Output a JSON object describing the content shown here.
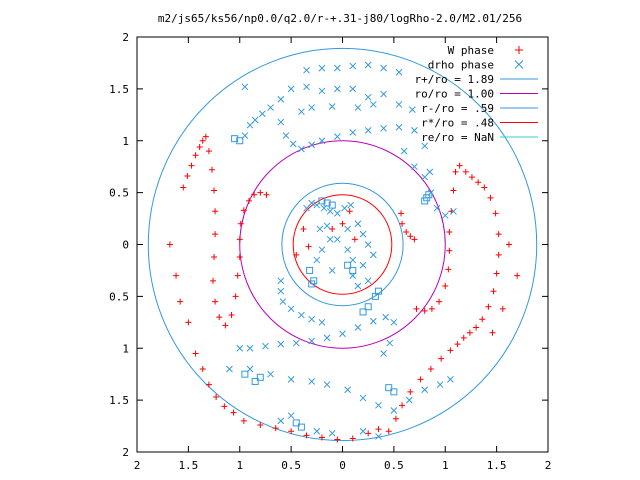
{
  "chart_data": {
    "type": "scatter",
    "title": "m2/js65/ks56/np0.0/q2.0/r-+.31-j80/logRho-2.0/M2.01/256",
    "xlabel": "",
    "ylabel": "",
    "xlim": [
      -2,
      2
    ],
    "ylim": [
      -2,
      2
    ],
    "x_tick_labels": [
      "2",
      "1.5",
      "1",
      "0.5",
      "0",
      "0.5",
      "1",
      "1.5",
      "2"
    ],
    "y_tick_labels": [
      "2",
      "1.5",
      "1",
      "0.5",
      "0",
      "0.5",
      "1",
      "1.5",
      "2"
    ],
    "grid": false,
    "legend_position": "top-right",
    "series": [
      {
        "name": "W phase",
        "marker": "plus",
        "color": "#ff0000",
        "labels": [
          "W phase"
        ]
      },
      {
        "name": "drho phase",
        "marker": "cross",
        "color": "#3399dd",
        "labels": [
          "drho phase"
        ]
      }
    ],
    "circles": [
      {
        "name": "r+/ro = 1.89",
        "radius": 1.89,
        "color": "#3399dd"
      },
      {
        "name": "ro/ro = 1.00",
        "radius": 1.0,
        "color": "#bb00bb"
      },
      {
        "name": "r-/ro = .59",
        "radius": 0.59,
        "color": "#3399dd"
      },
      {
        "name": "r*/ro = .48",
        "radius": 0.48,
        "color": "#ff0000"
      },
      {
        "name": "re/ro = NaN",
        "radius": null,
        "color": "#33cccc"
      }
    ],
    "w_phase_points": [
      [
        -1.55,
        0.55
      ],
      [
        -1.51,
        0.66
      ],
      [
        -1.47,
        0.76
      ],
      [
        -1.43,
        0.86
      ],
      [
        -1.39,
        0.94
      ],
      [
        -1.36,
        1.0
      ],
      [
        -1.33,
        1.04
      ],
      [
        -1.3,
        0.9
      ],
      [
        -1.27,
        0.72
      ],
      [
        -1.25,
        0.52
      ],
      [
        -1.24,
        0.32
      ],
      [
        -1.24,
        0.1
      ],
      [
        -1.25,
        -0.12
      ],
      [
        -1.26,
        -0.35
      ],
      [
        -1.24,
        -0.55
      ],
      [
        -1.2,
        -0.7
      ],
      [
        -1.14,
        -0.78
      ],
      [
        -1.08,
        -0.68
      ],
      [
        -1.04,
        -0.5
      ],
      [
        -1.02,
        -0.3
      ],
      [
        -1.0,
        -0.12
      ],
      [
        -1.0,
        0.05
      ],
      [
        -0.99,
        0.2
      ],
      [
        -0.96,
        0.33
      ],
      [
        -0.91,
        0.42
      ],
      [
        -0.86,
        0.48
      ],
      [
        -0.8,
        0.5
      ],
      [
        -0.74,
        0.48
      ],
      [
        -1.68,
        0.0
      ],
      [
        -1.62,
        -0.3
      ],
      [
        -1.58,
        -0.55
      ],
      [
        -1.5,
        -0.75
      ],
      [
        -1.43,
        -1.05
      ],
      [
        -1.36,
        -1.2
      ],
      [
        -1.3,
        -1.35
      ],
      [
        -1.23,
        -1.47
      ],
      [
        -1.15,
        -1.56
      ],
      [
        -1.06,
        -1.62
      ],
      [
        -0.96,
        -1.7
      ],
      [
        -0.8,
        -1.74
      ],
      [
        -0.65,
        -1.77
      ],
      [
        -0.5,
        -1.8
      ],
      [
        -0.35,
        -1.84
      ],
      [
        -0.2,
        -1.86
      ],
      [
        -0.05,
        -1.88
      ],
      [
        0.1,
        -1.87
      ],
      [
        0.25,
        -1.82
      ],
      [
        0.35,
        -1.78
      ],
      [
        0.45,
        -1.8
      ],
      [
        0.52,
        -1.68
      ],
      [
        0.58,
        -1.55
      ],
      [
        0.66,
        -1.42
      ],
      [
        0.76,
        -1.3
      ],
      [
        0.86,
        -1.2
      ],
      [
        0.96,
        -1.1
      ],
      [
        1.05,
        -1.02
      ],
      [
        1.12,
        -0.96
      ],
      [
        1.18,
        -0.9
      ],
      [
        1.24,
        -0.85
      ],
      [
        1.3,
        -0.8
      ],
      [
        1.36,
        -0.72
      ],
      [
        1.42,
        -0.6
      ],
      [
        1.47,
        -0.45
      ],
      [
        1.5,
        -0.28
      ],
      [
        1.52,
        -0.1
      ],
      [
        1.52,
        0.1
      ],
      [
        1.49,
        0.3
      ],
      [
        1.44,
        0.45
      ],
      [
        1.38,
        0.55
      ],
      [
        1.32,
        0.6
      ],
      [
        1.26,
        0.65
      ],
      [
        1.2,
        0.7
      ],
      [
        1.14,
        0.76
      ],
      [
        1.1,
        0.7
      ],
      [
        1.08,
        0.52
      ],
      [
        1.06,
        0.32
      ],
      [
        1.04,
        0.12
      ],
      [
        1.04,
        -0.06
      ],
      [
        1.03,
        -0.24
      ],
      [
        1.0,
        -0.4
      ],
      [
        0.94,
        -0.55
      ],
      [
        0.87,
        -0.62
      ],
      [
        0.8,
        -0.64
      ],
      [
        0.72,
        -0.62
      ],
      [
        1.62,
        0.0
      ],
      [
        1.7,
        -0.3
      ],
      [
        1.56,
        -0.62
      ],
      [
        1.46,
        -0.85
      ],
      [
        0.57,
        0.3
      ],
      [
        0.58,
        0.2
      ],
      [
        0.62,
        0.12
      ],
      [
        0.66,
        0.08
      ],
      [
        0.7,
        0.05
      ],
      [
        -0.33,
        -0.02
      ],
      [
        -0.38,
        0.15
      ],
      [
        -0.45,
        -0.1
      ],
      [
        0.0,
        0.2
      ],
      [
        0.07,
        0.32
      ],
      [
        0.12,
        0.05
      ],
      [
        -0.1,
        0.15
      ]
    ],
    "drho_phase_points": [
      [
        -0.95,
        1.05
      ],
      [
        -0.9,
        1.15
      ],
      [
        -0.85,
        1.2
      ],
      [
        -0.78,
        1.26
      ],
      [
        -0.7,
        1.32
      ],
      [
        -0.6,
        1.4
      ],
      [
        -0.5,
        1.5
      ],
      [
        -0.35,
        1.52
      ],
      [
        -0.2,
        1.48
      ],
      [
        -0.05,
        1.5
      ],
      [
        0.1,
        1.5
      ],
      [
        0.25,
        1.42
      ],
      [
        0.4,
        1.45
      ],
      [
        0.55,
        1.35
      ],
      [
        0.68,
        1.3
      ],
      [
        -0.4,
        1.28
      ],
      [
        -0.3,
        1.32
      ],
      [
        -0.1,
        1.33
      ],
      [
        0.15,
        1.32
      ],
      [
        0.3,
        1.35
      ],
      [
        -0.95,
        1.52
      ],
      [
        -0.35,
        1.68
      ],
      [
        -0.2,
        1.7
      ],
      [
        -0.05,
        1.7
      ],
      [
        0.1,
        1.72
      ],
      [
        0.25,
        1.73
      ],
      [
        0.4,
        1.7
      ],
      [
        0.55,
        1.66
      ],
      [
        -0.6,
        1.18
      ],
      [
        -0.55,
        1.05
      ],
      [
        -0.48,
        0.97
      ],
      [
        -0.4,
        0.92
      ],
      [
        -0.3,
        0.96
      ],
      [
        -0.2,
        1.0
      ],
      [
        -0.05,
        1.04
      ],
      [
        0.1,
        1.08
      ],
      [
        0.25,
        1.1
      ],
      [
        0.4,
        1.12
      ],
      [
        0.55,
        1.13
      ],
      [
        0.7,
        1.1
      ],
      [
        0.8,
        0.95
      ],
      [
        0.85,
        0.7
      ],
      [
        0.86,
        0.5
      ],
      [
        0.92,
        0.35
      ],
      [
        1.0,
        0.28
      ],
      [
        1.08,
        0.32
      ],
      [
        0.6,
        0.9
      ],
      [
        0.7,
        0.75
      ],
      [
        0.8,
        0.65
      ],
      [
        -1.0,
        -1.0
      ],
      [
        -0.9,
        -1.0
      ],
      [
        -0.75,
        -0.98
      ],
      [
        -0.6,
        -0.96
      ],
      [
        -0.45,
        -0.95
      ],
      [
        -0.3,
        -0.93
      ],
      [
        -0.15,
        -0.9
      ],
      [
        0.0,
        -0.86
      ],
      [
        0.15,
        -0.8
      ],
      [
        0.3,
        -0.74
      ],
      [
        0.42,
        -0.7
      ],
      [
        0.5,
        -0.75
      ],
      [
        0.46,
        -0.95
      ],
      [
        0.4,
        -1.05
      ],
      [
        -1.1,
        -1.2
      ],
      [
        -0.9,
        -1.2
      ],
      [
        -0.7,
        -1.25
      ],
      [
        -0.5,
        -1.3
      ],
      [
        -0.3,
        -1.32
      ],
      [
        -0.15,
        -1.35
      ],
      [
        0.05,
        -1.4
      ],
      [
        0.2,
        -1.48
      ],
      [
        0.35,
        -1.55
      ],
      [
        0.5,
        -1.6
      ],
      [
        0.65,
        -1.5
      ],
      [
        0.8,
        -1.4
      ],
      [
        0.95,
        -1.35
      ],
      [
        1.05,
        -1.3
      ],
      [
        -0.5,
        -1.65
      ],
      [
        -0.6,
        -1.7
      ],
      [
        -0.25,
        -1.8
      ],
      [
        -0.1,
        -1.82
      ],
      [
        0.2,
        -1.8
      ],
      [
        0.35,
        -1.85
      ],
      [
        -0.6,
        -0.35
      ],
      [
        -0.6,
        -0.45
      ],
      [
        -0.58,
        -0.55
      ],
      [
        -0.5,
        -0.62
      ],
      [
        -0.4,
        -0.68
      ],
      [
        -0.3,
        -0.72
      ],
      [
        -0.2,
        -0.75
      ],
      [
        -0.35,
        0.35
      ],
      [
        -0.3,
        0.4
      ],
      [
        -0.25,
        0.38
      ],
      [
        -0.18,
        0.35
      ],
      [
        -0.12,
        0.32
      ],
      [
        -0.05,
        0.3
      ],
      [
        0.02,
        0.35
      ],
      [
        0.08,
        0.38
      ],
      [
        0.15,
        0.2
      ],
      [
        0.2,
        0.1
      ],
      [
        0.25,
        0.0
      ],
      [
        0.3,
        -0.1
      ],
      [
        0.2,
        -0.2
      ],
      [
        0.1,
        -0.15
      ],
      [
        0.05,
        -0.05
      ],
      [
        -0.05,
        0.05
      ],
      [
        -0.12,
        0.05
      ],
      [
        -0.2,
        -0.05
      ],
      [
        -0.25,
        -0.15
      ],
      [
        -0.22,
        0.15
      ],
      [
        -0.15,
        0.18
      ],
      [
        0.1,
        -0.3
      ],
      [
        0.15,
        -0.4
      ],
      [
        0.25,
        -0.35
      ],
      [
        -0.1,
        -0.25
      ],
      [
        0.05,
        0.15
      ]
    ],
    "drho_square_points": [
      [
        -0.8,
        -1.28
      ],
      [
        -1.05,
        1.02
      ],
      [
        -1.0,
        1.0
      ],
      [
        0.8,
        0.42
      ],
      [
        0.82,
        0.45
      ],
      [
        0.84,
        0.48
      ],
      [
        -0.95,
        -1.25
      ],
      [
        -0.85,
        -1.32
      ],
      [
        0.45,
        -1.38
      ],
      [
        0.5,
        -1.42
      ],
      [
        -0.45,
        -1.72
      ],
      [
        -0.4,
        -1.76
      ],
      [
        0.2,
        -0.65
      ],
      [
        0.25,
        -0.6
      ],
      [
        0.32,
        -0.5
      ],
      [
        0.35,
        -0.45
      ],
      [
        -0.28,
        -0.35
      ],
      [
        -0.3,
        -0.38
      ],
      [
        -0.32,
        -0.25
      ],
      [
        -0.1,
        0.38
      ],
      [
        -0.15,
        0.4
      ],
      [
        -0.2,
        0.42
      ],
      [
        0.1,
        -0.25
      ],
      [
        0.05,
        -0.2
      ]
    ]
  }
}
